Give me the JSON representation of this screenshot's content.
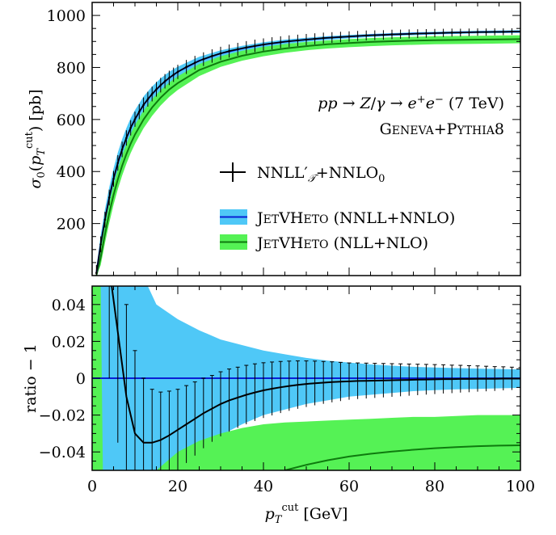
{
  "chart_data": [
    {
      "type": "line",
      "panel": "top",
      "ylabel": "σ0(pT^cut) [pb]",
      "xlim": [
        0,
        100
      ],
      "ylim": [
        0,
        1050
      ],
      "yticks": [
        200,
        400,
        600,
        800,
        1000
      ],
      "ytick_labels": [
        "200",
        "400",
        "600",
        "800",
        "1000"
      ],
      "annotation_line1": "pp → Z/γ → e⁺e⁻ (7 TeV)",
      "annotation_line2": "GENEVA+PYTHIA8",
      "legend_position": "center-right",
      "colors": {
        "nnll_band": "#4fc8f7",
        "nnll_line": "#0a1fd4",
        "nll_band": "#55f255",
        "nll_line": "#0e7a0e",
        "points": "#000000"
      },
      "series": [
        {
          "name": "NNLL′𝒯+NNLO₀",
          "kind": "points_with_errorbars",
          "x": [
            1,
            2,
            3,
            4,
            5,
            6,
            7,
            8,
            9,
            10,
            11,
            12,
            13,
            14,
            15,
            16,
            17,
            18,
            19,
            20,
            22,
            24,
            26,
            28,
            30,
            32,
            34,
            36,
            38,
            40,
            42,
            44,
            46,
            48,
            50,
            52,
            54,
            56,
            58,
            60,
            62,
            64,
            66,
            68,
            70,
            72,
            74,
            76,
            78,
            80,
            82,
            84,
            86,
            88,
            90,
            92,
            94,
            96,
            98,
            100
          ],
          "y": [
            10,
            120,
            215,
            300,
            372,
            433,
            485,
            529,
            568,
            601,
            630,
            656,
            678,
            698,
            716,
            732,
            747,
            760,
            772,
            783,
            802,
            818,
            832,
            844,
            854,
            863,
            870,
            877,
            883,
            888,
            893,
            897,
            901,
            904,
            907,
            910,
            913,
            915,
            917,
            919,
            921,
            923,
            924,
            925,
            927,
            928,
            929,
            930,
            931,
            932,
            933,
            934,
            934,
            935,
            936,
            936,
            937,
            937,
            938,
            938
          ]
        },
        {
          "name": "JETVHETO (NNLL+NNLO)",
          "kind": "line_with_band",
          "x": [
            1,
            2,
            3,
            4,
            5,
            6,
            7,
            8,
            9,
            10,
            12,
            14,
            16,
            18,
            20,
            25,
            30,
            35,
            40,
            45,
            50,
            55,
            60,
            65,
            70,
            75,
            80,
            85,
            90,
            95,
            100
          ],
          "y": [
            10,
            120,
            215,
            300,
            372,
            433,
            485,
            529,
            568,
            601,
            656,
            698,
            732,
            760,
            783,
            826,
            854,
            873,
            888,
            899,
            907,
            914,
            919,
            924,
            927,
            930,
            932,
            934,
            936,
            937,
            938
          ],
          "band_low": [
            0,
            90,
            180,
            262,
            333,
            393,
            446,
            492,
            532,
            567,
            625,
            670,
            707,
            738,
            763,
            811,
            841,
            862,
            878,
            890,
            899,
            906,
            912,
            917,
            921,
            924,
            927,
            929,
            931,
            932,
            933
          ],
          "band_high": [
            30,
            155,
            255,
            340,
            412,
            473,
            524,
            567,
            605,
            636,
            688,
            727,
            758,
            783,
            803,
            841,
            866,
            883,
            897,
            907,
            914,
            920,
            925,
            929,
            932,
            935,
            937,
            939,
            941,
            942,
            943
          ]
        },
        {
          "name": "JETVHETO (NLL+NLO)",
          "kind": "line_with_band",
          "x": [
            1,
            2,
            3,
            4,
            5,
            6,
            7,
            8,
            9,
            10,
            12,
            14,
            16,
            18,
            20,
            25,
            30,
            35,
            40,
            45,
            50,
            55,
            60,
            65,
            70,
            75,
            80,
            85,
            90,
            95,
            100
          ],
          "y": [
            0,
            70,
            160,
            240,
            310,
            370,
            422,
            467,
            507,
            542,
            600,
            646,
            684,
            715,
            740,
            790,
            822,
            845,
            861,
            873,
            882,
            889,
            894,
            898,
            901,
            903,
            905,
            906,
            907,
            908,
            909
          ],
          "band_low": [
            0,
            40,
            125,
            203,
            272,
            332,
            384,
            430,
            471,
            506,
            566,
            614,
            654,
            687,
            714,
            767,
            802,
            826,
            843,
            856,
            866,
            873,
            878,
            882,
            885,
            887,
            889,
            890,
            891,
            892,
            893
          ],
          "band_high": [
            20,
            105,
            195,
            278,
            349,
            410,
            462,
            506,
            545,
            579,
            634,
            678,
            713,
            742,
            766,
            813,
            843,
            864,
            879,
            890,
            898,
            904,
            909,
            913,
            916,
            918,
            920,
            921,
            922,
            923,
            924
          ]
        }
      ]
    },
    {
      "type": "line",
      "panel": "bottom",
      "xlabel": "pT^cut [GeV]",
      "ylabel": "ratio − 1",
      "xlim": [
        0,
        100
      ],
      "ylim": [
        -0.05,
        0.05
      ],
      "xticks": [
        0,
        20,
        40,
        60,
        80,
        100
      ],
      "xtick_labels": [
        "0",
        "20",
        "40",
        "60",
        "80",
        "100"
      ],
      "yticks": [
        -0.04,
        -0.02,
        0,
        0.02,
        0.04
      ],
      "ytick_labels": [
        "−0.04",
        "−0.02",
        "0",
        "0.02",
        "0.04"
      ],
      "series": [
        {
          "name": "JETVHETO (NNLL+NNLO) band",
          "kind": "band",
          "x": [
            0,
            13,
            15,
            20,
            25,
            30,
            35,
            40,
            45,
            50,
            55,
            60,
            65,
            70,
            75,
            80,
            85,
            90,
            95,
            100
          ],
          "band_low": [
            -0.05,
            -0.05,
            -0.05,
            -0.048,
            -0.039,
            -0.031,
            -0.025,
            -0.02,
            -0.017,
            -0.014,
            -0.012,
            -0.01,
            -0.009,
            -0.008,
            -0.007,
            -0.0065,
            -0.006,
            -0.0058,
            -0.0055,
            -0.0052
          ],
          "band_high": [
            0.05,
            0.05,
            0.04,
            0.032,
            0.026,
            0.021,
            0.018,
            0.015,
            0.013,
            0.011,
            0.0095,
            0.0085,
            0.0075,
            0.0068,
            0.0062,
            0.0058,
            0.0055,
            0.0052,
            0.005,
            0.0048
          ]
        },
        {
          "name": "JETVHETO (NNLL+NNLO) central",
          "kind": "line",
          "x": [
            0,
            100
          ],
          "y": [
            0,
            0
          ]
        },
        {
          "name": "JETVHETO (NLL+NLO) band",
          "kind": "band",
          "x": [
            0,
            2,
            2.5,
            15,
            20,
            25,
            30,
            35,
            40,
            45,
            50,
            55,
            60,
            65,
            70,
            75,
            80,
            85,
            90,
            95,
            100
          ],
          "band_low": [
            -0.05,
            -0.05,
            -0.05,
            -0.05,
            -0.05,
            -0.05,
            -0.05,
            -0.05,
            -0.05,
            -0.05,
            -0.05,
            -0.05,
            -0.05,
            -0.05,
            -0.05,
            -0.05,
            -0.05,
            -0.05,
            -0.05,
            -0.05,
            -0.05
          ],
          "band_high": [
            0.05,
            0.05,
            -0.05,
            -0.05,
            -0.04,
            -0.034,
            -0.03,
            -0.027,
            -0.025,
            -0.024,
            -0.0235,
            -0.023,
            -0.0225,
            -0.022,
            -0.0215,
            -0.021,
            -0.021,
            -0.0205,
            -0.02,
            -0.02,
            -0.02
          ]
        },
        {
          "name": "JETVHETO (NLL+NLO) central",
          "kind": "line",
          "x": [
            45,
            50,
            55,
            60,
            65,
            70,
            75,
            80,
            85,
            90,
            95,
            100
          ],
          "y": [
            -0.05,
            -0.047,
            -0.0445,
            -0.0425,
            -0.041,
            -0.0398,
            -0.0388,
            -0.038,
            -0.0374,
            -0.0369,
            -0.0366,
            -0.0364
          ]
        },
        {
          "name": "NNLL′𝒯+NNLO₀ ratio",
          "kind": "points_with_errorbars",
          "x": [
            4,
            6,
            8,
            10,
            12,
            14,
            16,
            18,
            20,
            22,
            24,
            26,
            28,
            30,
            32,
            34,
            36,
            38,
            40,
            42,
            44,
            46,
            48,
            50,
            52,
            54,
            56,
            58,
            60,
            62,
            64,
            66,
            68,
            70,
            72,
            74,
            76,
            78,
            80,
            82,
            84,
            86,
            88,
            90,
            92,
            94,
            96,
            98,
            100
          ],
          "y": [
            0.06,
            0.025,
            -0.01,
            -0.03,
            -0.035,
            -0.035,
            -0.0335,
            -0.031,
            -0.028,
            -0.025,
            -0.022,
            -0.019,
            -0.0165,
            -0.014,
            -0.012,
            -0.0105,
            -0.009,
            -0.0077,
            -0.0066,
            -0.0057,
            -0.0049,
            -0.0042,
            -0.0036,
            -0.0031,
            -0.0027,
            -0.0024,
            -0.0021,
            -0.0019,
            -0.0017,
            -0.0015,
            -0.0014,
            -0.0013,
            -0.0012,
            -0.0011,
            -0.001,
            -0.0009,
            -0.0008,
            -0.0007,
            -0.0006,
            -0.0005,
            -0.0005,
            -0.0004,
            -0.0004,
            -0.0003,
            -0.0003,
            -0.0003,
            -0.0002,
            -0.0002,
            -0.0002
          ],
          "err": [
            0.06,
            0.06,
            0.05,
            0.045,
            0.035,
            0.029,
            0.026,
            0.024,
            0.022,
            0.021,
            0.02,
            0.019,
            0.018,
            0.0175,
            0.017,
            0.0165,
            0.016,
            0.0155,
            0.015,
            0.0145,
            0.014,
            0.0135,
            0.013,
            0.0125,
            0.012,
            0.0115,
            0.011,
            0.0105,
            0.01,
            0.0098,
            0.0096,
            0.0094,
            0.0092,
            0.009,
            0.0088,
            0.0086,
            0.0084,
            0.0082,
            0.008,
            0.0078,
            0.0076,
            0.0074,
            0.0072,
            0.007,
            0.0068,
            0.0066,
            0.0064,
            0.0062,
            0.006
          ]
        }
      ]
    }
  ]
}
